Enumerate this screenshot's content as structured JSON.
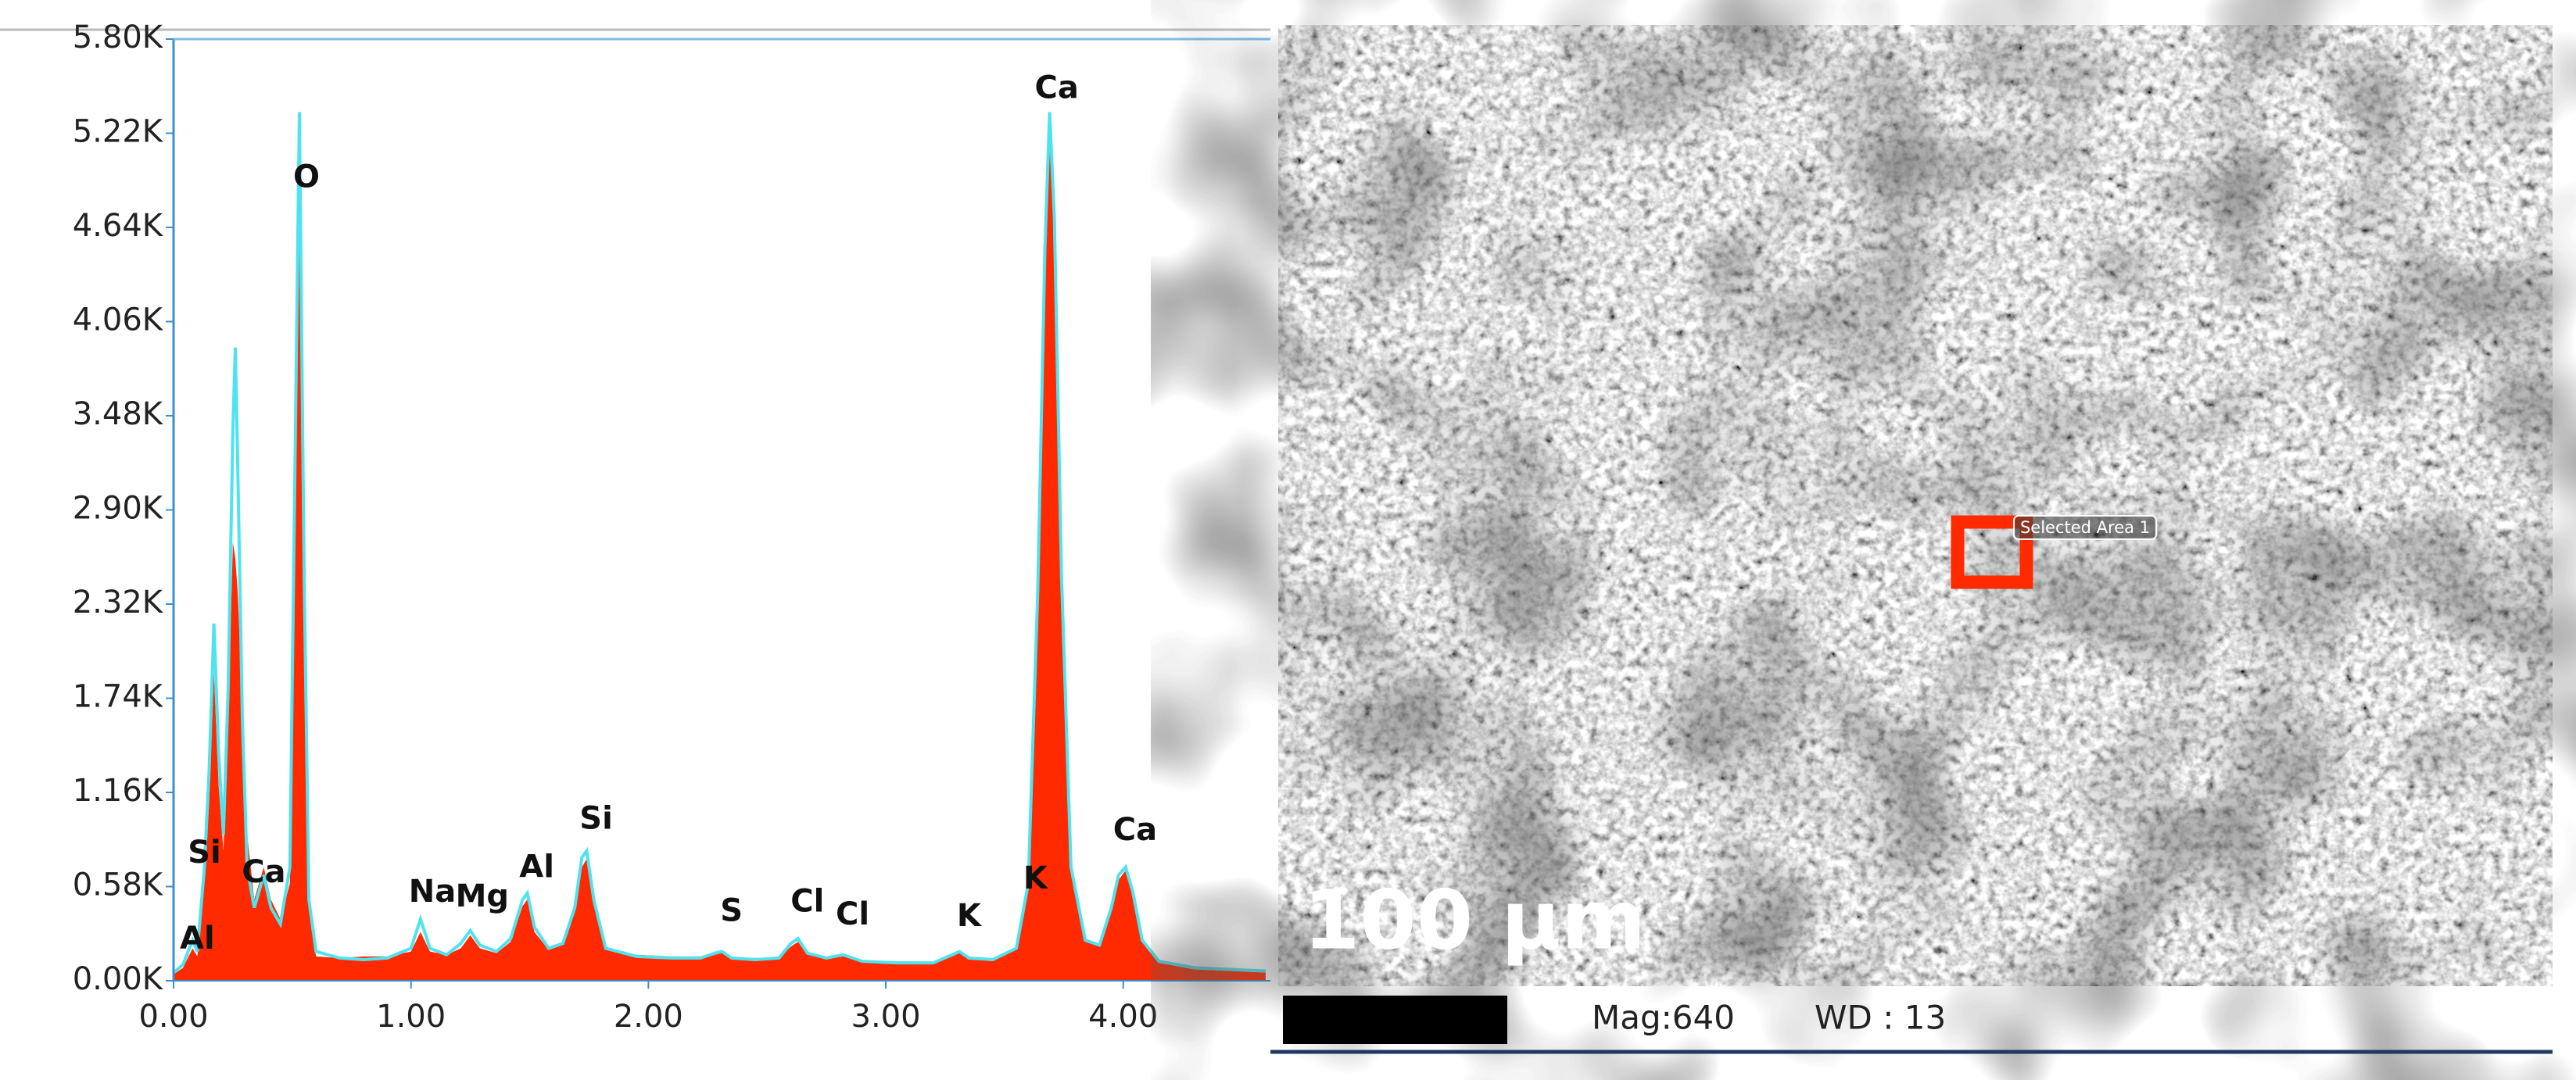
{
  "chart_data": {
    "type": "line",
    "x": [
      0.0,
      0.04,
      0.08,
      0.1,
      0.13,
      0.15,
      0.17,
      0.19,
      0.21,
      0.23,
      0.25,
      0.26,
      0.27,
      0.29,
      0.31,
      0.34,
      0.38,
      0.41,
      0.45,
      0.49,
      0.51,
      0.53,
      0.55,
      0.57,
      0.6,
      0.7,
      0.8,
      0.9,
      1.0,
      1.04,
      1.08,
      1.15,
      1.21,
      1.25,
      1.29,
      1.36,
      1.42,
      1.47,
      1.49,
      1.52,
      1.58,
      1.64,
      1.69,
      1.72,
      1.74,
      1.77,
      1.82,
      1.95,
      2.1,
      2.22,
      2.28,
      2.31,
      2.35,
      2.45,
      2.55,
      2.6,
      2.63,
      2.67,
      2.75,
      2.82,
      2.9,
      3.05,
      3.2,
      3.28,
      3.31,
      3.35,
      3.45,
      3.55,
      3.6,
      3.64,
      3.67,
      3.69,
      3.71,
      3.74,
      3.78,
      3.84,
      3.9,
      3.95,
      3.98,
      4.01,
      4.04,
      4.08,
      4.15,
      4.3,
      4.45,
      4.6
    ],
    "series": [
      {
        "style": "area",
        "color": "#ff2a00",
        "values": [
          40,
          80,
          200,
          150,
          600,
          1100,
          1900,
          1200,
          800,
          1600,
          2700,
          2600,
          2400,
          1700,
          900,
          500,
          700,
          500,
          380,
          600,
          2500,
          5200,
          2300,
          450,
          150,
          140,
          150,
          150,
          180,
          300,
          180,
          160,
          200,
          280,
          200,
          170,
          240,
          460,
          500,
          300,
          190,
          220,
          420,
          700,
          750,
          480,
          200,
          160,
          150,
          150,
          160,
          170,
          140,
          140,
          140,
          210,
          240,
          160,
          140,
          150,
          120,
          110,
          110,
          150,
          170,
          130,
          130,
          200,
          550,
          2200,
          4400,
          5300,
          4600,
          2400,
          680,
          240,
          210,
          420,
          620,
          680,
          520,
          240,
          110,
          70,
          60,
          50
        ]
      },
      {
        "style": "line",
        "color": "#4fe3f0",
        "values": [
          50,
          100,
          250,
          180,
          700,
          1300,
          2200,
          1400,
          900,
          1800,
          3400,
          3900,
          3200,
          1600,
          700,
          450,
          650,
          450,
          350,
          700,
          3000,
          5350,
          2500,
          500,
          180,
          140,
          130,
          140,
          200,
          380,
          200,
          160,
          230,
          310,
          220,
          180,
          260,
          500,
          540,
          330,
          200,
          230,
          450,
          760,
          800,
          500,
          200,
          150,
          140,
          140,
          170,
          180,
          140,
          130,
          140,
          230,
          260,
          170,
          140,
          160,
          120,
          110,
          110,
          160,
          180,
          140,
          130,
          200,
          600,
          2400,
          4500,
          5350,
          4700,
          2500,
          700,
          250,
          220,
          450,
          650,
          700,
          550,
          250,
          120,
          80,
          70,
          60
        ]
      }
    ],
    "xlim": [
      0,
      4.62
    ],
    "ylim": [
      0,
      5800
    ],
    "xticks": [
      {
        "value": 0,
        "label": "0.00"
      },
      {
        "value": 1,
        "label": "1.00"
      },
      {
        "value": 2,
        "label": "2.00"
      },
      {
        "value": 3,
        "label": "3.00"
      },
      {
        "value": 4,
        "label": "4.00"
      }
    ],
    "yticks": [
      {
        "value": 0,
        "label": "0.00K"
      },
      {
        "value": 580,
        "label": "0.58K"
      },
      {
        "value": 1160,
        "label": "1.16K"
      },
      {
        "value": 1740,
        "label": "1.74K"
      },
      {
        "value": 2320,
        "label": "2.32K"
      },
      {
        "value": 2900,
        "label": "2.90K"
      },
      {
        "value": 3480,
        "label": "3.48K"
      },
      {
        "value": 4060,
        "label": "4.06K"
      },
      {
        "value": 4640,
        "label": "4.64K"
      },
      {
        "value": 5220,
        "label": "5.22K"
      },
      {
        "value": 5800,
        "label": "5.80K"
      }
    ],
    "annotations": [
      {
        "text": "Al",
        "x": 0.1,
        "y": 250
      },
      {
        "text": "Si",
        "x": 0.13,
        "y": 780
      },
      {
        "text": "Ca",
        "x": 0.38,
        "y": 660
      },
      {
        "text": "O",
        "x": 0.56,
        "y": 4940
      },
      {
        "text": "Na",
        "x": 1.09,
        "y": 540
      },
      {
        "text": "Mg",
        "x": 1.3,
        "y": 510
      },
      {
        "text": "Al",
        "x": 1.53,
        "y": 690
      },
      {
        "text": "Si",
        "x": 1.78,
        "y": 990
      },
      {
        "text": "S",
        "x": 2.35,
        "y": 420
      },
      {
        "text": "Cl",
        "x": 2.67,
        "y": 480
      },
      {
        "text": "Cl",
        "x": 2.86,
        "y": 400
      },
      {
        "text": "K",
        "x": 3.35,
        "y": 390
      },
      {
        "text": "K",
        "x": 3.63,
        "y": 620
      },
      {
        "text": "Ca",
        "x": 3.72,
        "y": 5490
      },
      {
        "text": "Ca",
        "x": 4.05,
        "y": 920
      }
    ]
  },
  "micrograph": {
    "area_label": "Selected Area 1",
    "scale_bar": "100 µm",
    "magnification": "Mag:640",
    "working_distance": "WD : 13"
  }
}
